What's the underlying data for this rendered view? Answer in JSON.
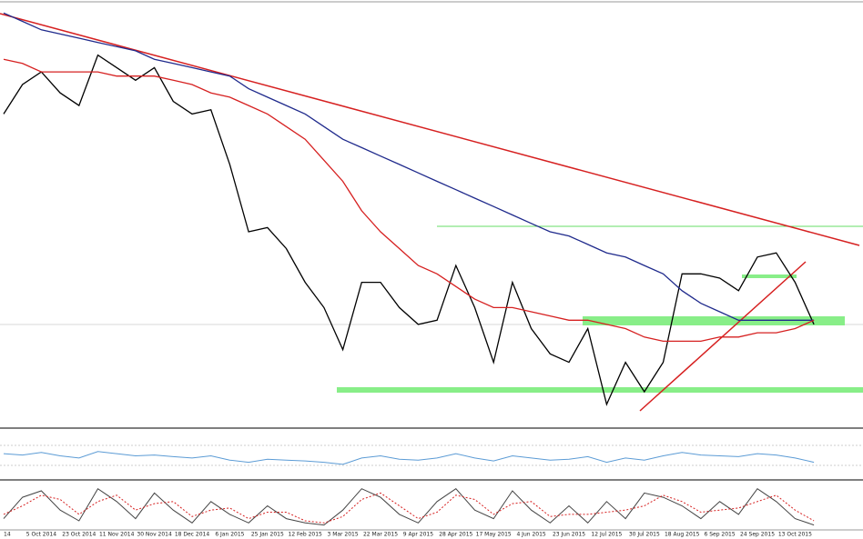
{
  "chart_data": [
    {
      "type": "line",
      "categories": [
        "14",
        null,
        "5 Oct 2014",
        null,
        "23 Oct 2014",
        null,
        "11 Nov 2014",
        null,
        "30 Nov 2014",
        null,
        "18 Dec 2014",
        null,
        "6 Jan 2015",
        null,
        "25 Jan 2015",
        null,
        "12 Feb 2015",
        null,
        "3 Mar 2015",
        null,
        "22 Mar 2015",
        null,
        "9 Apr 2015",
        null,
        "28 Apr 2015",
        null,
        "17 May 2015",
        null,
        "4 Jun 2015",
        null,
        "23 Jun 2015",
        null,
        "12 Jul 2015",
        null,
        "30 Jul 2015",
        null,
        "18 Aug 2015",
        null,
        "6 Sep 2015",
        null,
        "24 Sep 2015",
        null,
        "13 Oct 2015",
        null
      ],
      "ylim": [
        0,
        100
      ],
      "series": [
        {
          "color": "#000000",
          "values": [
            74,
            81,
            84,
            79,
            76,
            88,
            85,
            82,
            85,
            77,
            74,
            75,
            62,
            46,
            47,
            42,
            34,
            28,
            18,
            34,
            34,
            28,
            24,
            25,
            38,
            28,
            15,
            34,
            23,
            17,
            15,
            23,
            5,
            15,
            8,
            15,
            36,
            36,
            35,
            32,
            40,
            41,
            34,
            24
          ]
        },
        {
          "color": "#1f2a8c",
          "values": [
            98,
            96,
            94,
            93,
            92,
            91,
            90,
            89,
            87,
            86,
            85,
            84,
            83,
            80,
            78,
            76,
            74,
            71,
            68,
            66,
            64,
            62,
            60,
            58,
            56,
            54,
            52,
            50,
            48,
            46,
            45,
            43,
            41,
            40,
            38,
            36,
            32,
            29,
            27,
            25,
            25,
            25,
            25,
            25
          ]
        },
        {
          "color": "#d62020",
          "values": [
            87,
            86,
            84,
            84,
            84,
            84,
            83,
            83,
            83,
            82,
            81,
            79,
            78,
            76,
            74,
            71,
            68,
            63,
            58,
            51,
            46,
            42,
            38,
            36,
            33,
            30,
            28,
            28,
            27,
            26,
            25,
            25,
            24,
            23,
            21,
            20,
            20,
            20,
            21,
            21,
            22,
            22,
            23,
            25
          ]
        }
      ]
    },
    {
      "type": "line",
      "ylim": [
        0,
        100
      ],
      "series": [
        {
          "color": "#5b9bd5",
          "values": [
            55,
            52,
            58,
            50,
            45,
            60,
            55,
            50,
            52,
            48,
            45,
            50,
            40,
            35,
            42,
            40,
            38,
            35,
            30,
            45,
            50,
            42,
            40,
            45,
            55,
            45,
            38,
            50,
            45,
            40,
            42,
            48,
            35,
            45,
            40,
            50,
            58,
            52,
            50,
            48,
            55,
            52,
            45,
            35
          ]
        }
      ]
    },
    {
      "type": "line",
      "ylim": [
        0,
        100
      ],
      "series": [
        {
          "color": "#444444",
          "values": [
            20,
            70,
            85,
            40,
            15,
            90,
            60,
            20,
            80,
            40,
            10,
            60,
            30,
            10,
            50,
            20,
            10,
            5,
            40,
            90,
            70,
            30,
            10,
            60,
            90,
            40,
            20,
            85,
            40,
            10,
            50,
            10,
            60,
            20,
            80,
            70,
            50,
            20,
            60,
            30,
            90,
            60,
            20,
            5
          ]
        },
        {
          "color": "#d62020",
          "dashed": true,
          "values": [
            30,
            50,
            75,
            65,
            30,
            60,
            75,
            40,
            55,
            60,
            25,
            40,
            45,
            20,
            35,
            35,
            15,
            10,
            25,
            65,
            80,
            50,
            20,
            35,
            75,
            65,
            30,
            55,
            60,
            25,
            30,
            30,
            35,
            40,
            50,
            75,
            60,
            35,
            40,
            45,
            60,
            75,
            40,
            15
          ]
        }
      ]
    }
  ]
}
